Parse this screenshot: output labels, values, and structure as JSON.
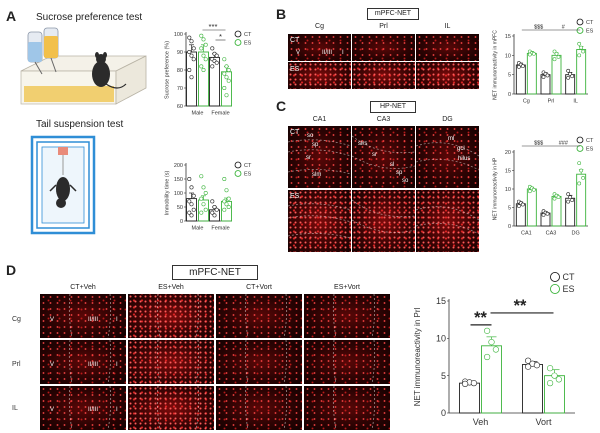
{
  "panels": {
    "A": {
      "letter": "A",
      "sucrose_title": "Sucrose preference test",
      "tail_title": "Tail suspension test"
    },
    "B": {
      "letter": "B",
      "region_label": "mPFC-NET",
      "columns": [
        "Cg",
        "Prl",
        "IL"
      ],
      "rows": [
        "CT",
        "ES"
      ],
      "inset_labels": [
        "V",
        "II/III",
        "I"
      ]
    },
    "C": {
      "letter": "C",
      "region_label": "HP-NET",
      "columns": [
        "CA1",
        "CA3",
        "DG"
      ],
      "rows": [
        "CT",
        "ES"
      ],
      "inset_labels": [
        "so",
        "sp",
        "sr",
        "slm",
        "slrs",
        "sr",
        "sl",
        "sp",
        "so",
        "ml",
        "gcl",
        "hilus"
      ]
    },
    "D": {
      "letter": "D",
      "region_label": "mPFC-NET",
      "columns": [
        "CT+Veh",
        "ES+Veh",
        "CT+Vort",
        "ES+Vort"
      ],
      "rows": [
        "Cg",
        "Prl",
        "IL"
      ],
      "inset_labels": [
        "V",
        "II/III",
        "I"
      ]
    }
  },
  "colors": {
    "ct": "#222222",
    "es": "#3cb43c",
    "micro": "#8a0c0c"
  },
  "chart_data": [
    {
      "id": "sucrose",
      "type": "bar",
      "categories": [
        "Male",
        "Female"
      ],
      "series": [
        {
          "name": "CT",
          "values": [
            90,
            87
          ],
          "errors": [
            4,
            2
          ],
          "points": [
            [
              98,
              96,
              92,
              90,
              88,
              86,
              80,
              76
            ],
            [
              92,
              89,
              88,
              86,
              85,
              84,
              82
            ]
          ]
        },
        {
          "name": "ES",
          "values": [
            90,
            79
          ],
          "errors": [
            4,
            3
          ],
          "points": [
            [
              99,
              97,
              94,
              92,
              88,
              86,
              82,
              80
            ],
            [
              86,
              82,
              80,
              78,
              76,
              74,
              70,
              66
            ]
          ]
        }
      ],
      "ylabel": "Sucrose preference (%)",
      "yticks": [
        60,
        70,
        80,
        90,
        100
      ],
      "ylim": [
        60,
        100
      ],
      "legend": [
        "CT",
        "ES"
      ],
      "significance": [
        {
          "label": "***"
        },
        {
          "label": "*"
        }
      ]
    },
    {
      "id": "immobility",
      "type": "bar",
      "categories": [
        "Male",
        "Female"
      ],
      "series": [
        {
          "name": "CT",
          "values": [
            80,
            40
          ],
          "errors": [
            20,
            10
          ],
          "points": [
            [
              150,
              120,
              90,
              70,
              60,
              40,
              30,
              20
            ],
            [
              70,
              50,
              40,
              30,
              20
            ]
          ]
        },
        {
          "name": "ES",
          "values": [
            75,
            70
          ],
          "errors": [
            15,
            12
          ],
          "points": [
            [
              160,
              120,
              100,
              80,
              60,
              40,
              30
            ],
            [
              150,
              110,
              80,
              70,
              60,
              50,
              40
            ]
          ]
        }
      ],
      "ylabel": "Immobility time (s)",
      "yticks": [
        0,
        50,
        100,
        150,
        200
      ],
      "ylim": [
        0,
        200
      ],
      "legend": [
        "CT",
        "ES"
      ]
    },
    {
      "id": "net_mpfc",
      "type": "bar",
      "categories": [
        "Cg",
        "Prl",
        "IL"
      ],
      "series": [
        {
          "name": "CT",
          "values": [
            7.5,
            5,
            5
          ],
          "errors": [
            0.5,
            0.5,
            0.6
          ],
          "points": [
            [
              8,
              7.6,
              7.2,
              7
            ],
            [
              5.6,
              5.2,
              4.8,
              4.4
            ],
            [
              6,
              5.2,
              4.6,
              4.2
            ]
          ]
        },
        {
          "name": "ES",
          "values": [
            10.5,
            10,
            11.5
          ],
          "errors": [
            0.5,
            0.6,
            0.8
          ],
          "points": [
            [
              11,
              10.6,
              10.4,
              10.2
            ],
            [
              11,
              10.4,
              9.6,
              9
            ],
            [
              13,
              12,
              11,
              10
            ]
          ]
        }
      ],
      "ylabel": "NET immunoreactivity in mPFC",
      "yticks": [
        0,
        5,
        10,
        15
      ],
      "ylim": [
        0,
        15
      ],
      "legend": [
        "CT",
        "ES"
      ],
      "significance": [
        {
          "label": "$$$"
        },
        {
          "label": "#"
        }
      ]
    },
    {
      "id": "net_hp",
      "type": "bar",
      "categories": [
        "CA1",
        "CA3",
        "DG"
      ],
      "series": [
        {
          "name": "CT",
          "values": [
            6,
            3.5,
            7.5
          ],
          "errors": [
            0.5,
            0.4,
            0.8
          ],
          "points": [
            [
              6.6,
              6.2,
              5.8,
              5.4
            ],
            [
              4,
              3.6,
              3.3,
              3
            ],
            [
              8.6,
              7.8,
              7,
              6.6
            ]
          ]
        },
        {
          "name": "ES",
          "values": [
            10,
            8,
            14
          ],
          "errors": [
            0.5,
            0.5,
            1.2
          ],
          "points": [
            [
              10.6,
              10.2,
              9.8,
              9.4
            ],
            [
              8.6,
              8.2,
              7.8,
              7.4
            ],
            [
              17,
              15,
              13,
              11.5
            ]
          ]
        }
      ],
      "ylabel": "NET immunoreactivity in HP",
      "yticks": [
        0,
        5,
        10,
        15,
        20
      ],
      "ylim": [
        0,
        20
      ],
      "legend": [
        "CT",
        "ES"
      ],
      "significance": [
        {
          "label": "$$$"
        },
        {
          "label": "###"
        }
      ]
    },
    {
      "id": "net_prl",
      "type": "bar",
      "categories": [
        "Veh",
        "Vort"
      ],
      "series": [
        {
          "name": "CT",
          "values": [
            4,
            6.5
          ],
          "errors": [
            0.2,
            0.4
          ],
          "points": [
            [
              4.2,
              4.1,
              4,
              3.9
            ],
            [
              7,
              6.6,
              6.4,
              6.2
            ]
          ]
        },
        {
          "name": "ES",
          "values": [
            9,
            5
          ],
          "errors": [
            1.2,
            0.8
          ],
          "points": [
            [
              11,
              9.5,
              8.5,
              7.5
            ],
            [
              6,
              5,
              4.5,
              4
            ]
          ]
        }
      ],
      "ylabel": "NET immunoreactivity in Prl",
      "yticks": [
        0,
        5,
        10,
        15
      ],
      "ylim": [
        0,
        15
      ],
      "legend": [
        "CT",
        "ES"
      ],
      "significance": [
        {
          "label": "**"
        },
        {
          "label": "**"
        }
      ]
    }
  ]
}
